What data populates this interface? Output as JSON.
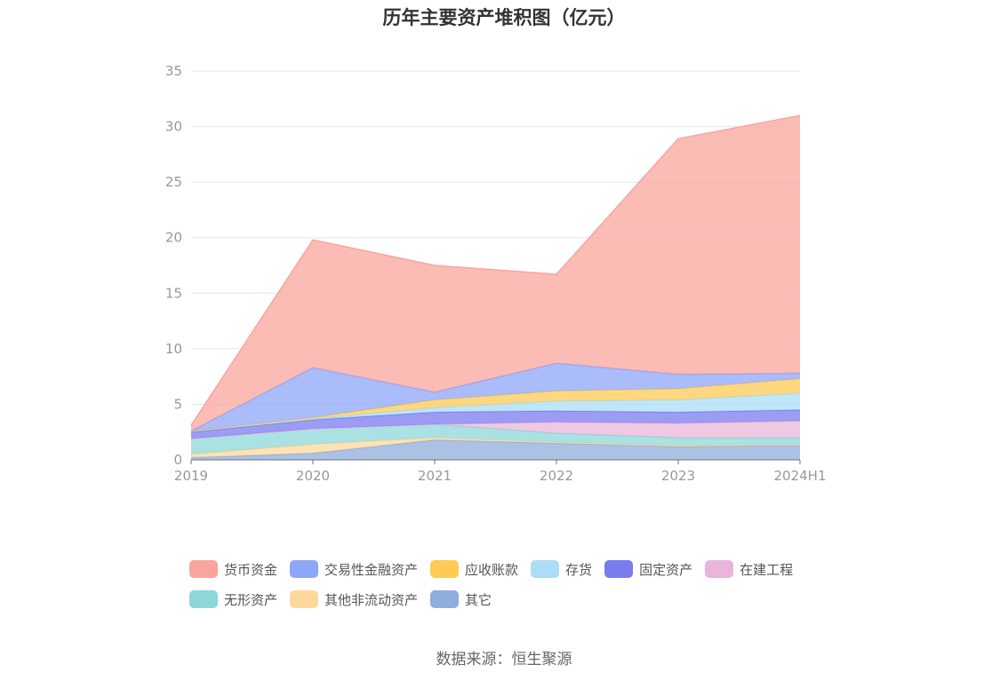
{
  "chart_data": {
    "type": "area",
    "stacked": true,
    "title": "历年主要资产堆积图（亿元）",
    "xlabel": "",
    "ylabel": "",
    "categories": [
      "2019",
      "2020",
      "2021",
      "2022",
      "2023",
      "2024H1"
    ],
    "ylim": [
      0,
      35
    ],
    "yticks": [
      0,
      5,
      10,
      15,
      20,
      25,
      30,
      35
    ],
    "grid": true,
    "legend_position": "bottom",
    "series": [
      {
        "name": "其它",
        "color": "#8FAEDC",
        "values": [
          0.2,
          0.6,
          1.8,
          1.5,
          1.2,
          1.3
        ]
      },
      {
        "name": "其他非流动资产",
        "color": "#FCD99B",
        "values": [
          0.3,
          0.8,
          0.2,
          0.1,
          0.1,
          0.1
        ]
      },
      {
        "name": "无形资产",
        "color": "#8DD7D9",
        "values": [
          1.4,
          1.4,
          1.2,
          0.8,
          0.7,
          0.6
        ]
      },
      {
        "name": "在建工程",
        "color": "#EAB5D8",
        "values": [
          0.0,
          0.0,
          0.0,
          1.0,
          1.3,
          1.5
        ]
      },
      {
        "name": "固定资产",
        "color": "#7B7BF0",
        "values": [
          0.6,
          0.8,
          1.1,
          1.0,
          1.0,
          1.0
        ]
      },
      {
        "name": "存货",
        "color": "#ABDDF7",
        "values": [
          0.1,
          0.1,
          0.4,
          0.9,
          1.1,
          1.5
        ]
      },
      {
        "name": "应收账款",
        "color": "#FDCB56",
        "values": [
          0.0,
          0.1,
          0.7,
          0.9,
          1.0,
          1.3
        ]
      },
      {
        "name": "交易性金融资产",
        "color": "#8DA6F8",
        "values": [
          0.0,
          4.5,
          0.7,
          2.5,
          1.3,
          0.5
        ]
      },
      {
        "name": "货币资金",
        "color": "#F9A59D",
        "values": [
          0.5,
          11.5,
          11.4,
          8.0,
          21.2,
          23.2
        ]
      }
    ]
  },
  "legend_order": [
    {
      "name": "货币资金",
      "color": "#F9A59D"
    },
    {
      "name": "交易性金融资产",
      "color": "#8DA6F8"
    },
    {
      "name": "应收账款",
      "color": "#FDCB56"
    },
    {
      "name": "存货",
      "color": "#ABDDF7"
    },
    {
      "name": "固定资产",
      "color": "#7B7BF0"
    },
    {
      "name": "在建工程",
      "color": "#EAB5D8"
    },
    {
      "name": "无形资产",
      "color": "#8DD7D9"
    },
    {
      "name": "其他非流动资产",
      "color": "#FCD99B"
    },
    {
      "name": "其它",
      "color": "#8FAEDC"
    }
  ],
  "source": "数据来源：恒生聚源"
}
